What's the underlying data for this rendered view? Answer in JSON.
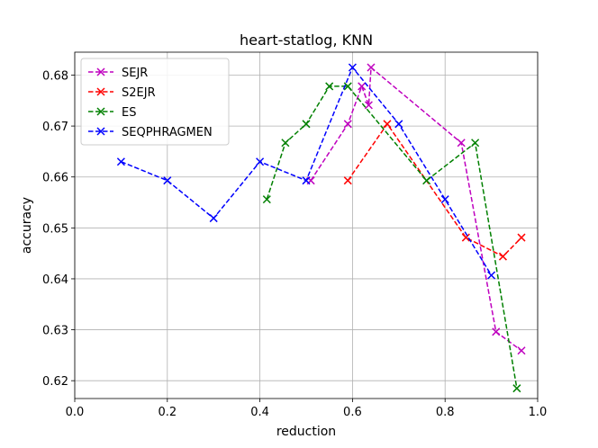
{
  "chart_data": {
    "type": "line",
    "title": "heart-statlog, KNN",
    "xlabel": "reduction",
    "ylabel": "accuracy",
    "xlim": [
      0.0,
      1.0
    ],
    "ylim": [
      0.6165,
      0.6845
    ],
    "xticks": [
      0.0,
      0.2,
      0.4,
      0.6,
      0.8,
      1.0
    ],
    "xtick_labels": [
      "0.0",
      "0.2",
      "0.4",
      "0.6",
      "0.8",
      "1.0"
    ],
    "yticks": [
      0.62,
      0.63,
      0.64,
      0.65,
      0.66,
      0.67,
      0.68
    ],
    "ytick_labels": [
      "0.62",
      "0.63",
      "0.64",
      "0.65",
      "0.66",
      "0.67",
      "0.68"
    ],
    "grid": true,
    "legend_position": "top-left",
    "series": [
      {
        "name": "SEJR",
        "color": "#bf00bf",
        "marker": "x",
        "linestyle": "dashed",
        "x": [
          0.51,
          0.59,
          0.62,
          0.635,
          0.64,
          0.835,
          0.91,
          0.965
        ],
        "y": [
          0.6593,
          0.6704,
          0.6778,
          0.6741,
          0.6815,
          0.6667,
          0.6296,
          0.6259
        ]
      },
      {
        "name": "S2EJR",
        "color": "#ff0000",
        "marker": "x",
        "linestyle": "dashed",
        "x": [
          0.59,
          0.675,
          0.845,
          0.925,
          0.965
        ],
        "y": [
          0.6593,
          0.6704,
          0.6481,
          0.6444,
          0.6481
        ]
      },
      {
        "name": "ES",
        "color": "#008000",
        "marker": "x",
        "linestyle": "dashed",
        "x": [
          0.415,
          0.455,
          0.5,
          0.55,
          0.59,
          0.76,
          0.865,
          0.955
        ],
        "y": [
          0.6556,
          0.6667,
          0.6704,
          0.6778,
          0.6778,
          0.6593,
          0.6667,
          0.6185
        ]
      },
      {
        "name": "SEQPHRAGMEN",
        "color": "#0000ff",
        "marker": "x",
        "linestyle": "dashed",
        "x": [
          0.1,
          0.2,
          0.3,
          0.4,
          0.5,
          0.6,
          0.7,
          0.8,
          0.9
        ],
        "y": [
          0.663,
          0.6593,
          0.6519,
          0.663,
          0.6593,
          0.6815,
          0.6704,
          0.6556,
          0.6407
        ]
      }
    ]
  }
}
